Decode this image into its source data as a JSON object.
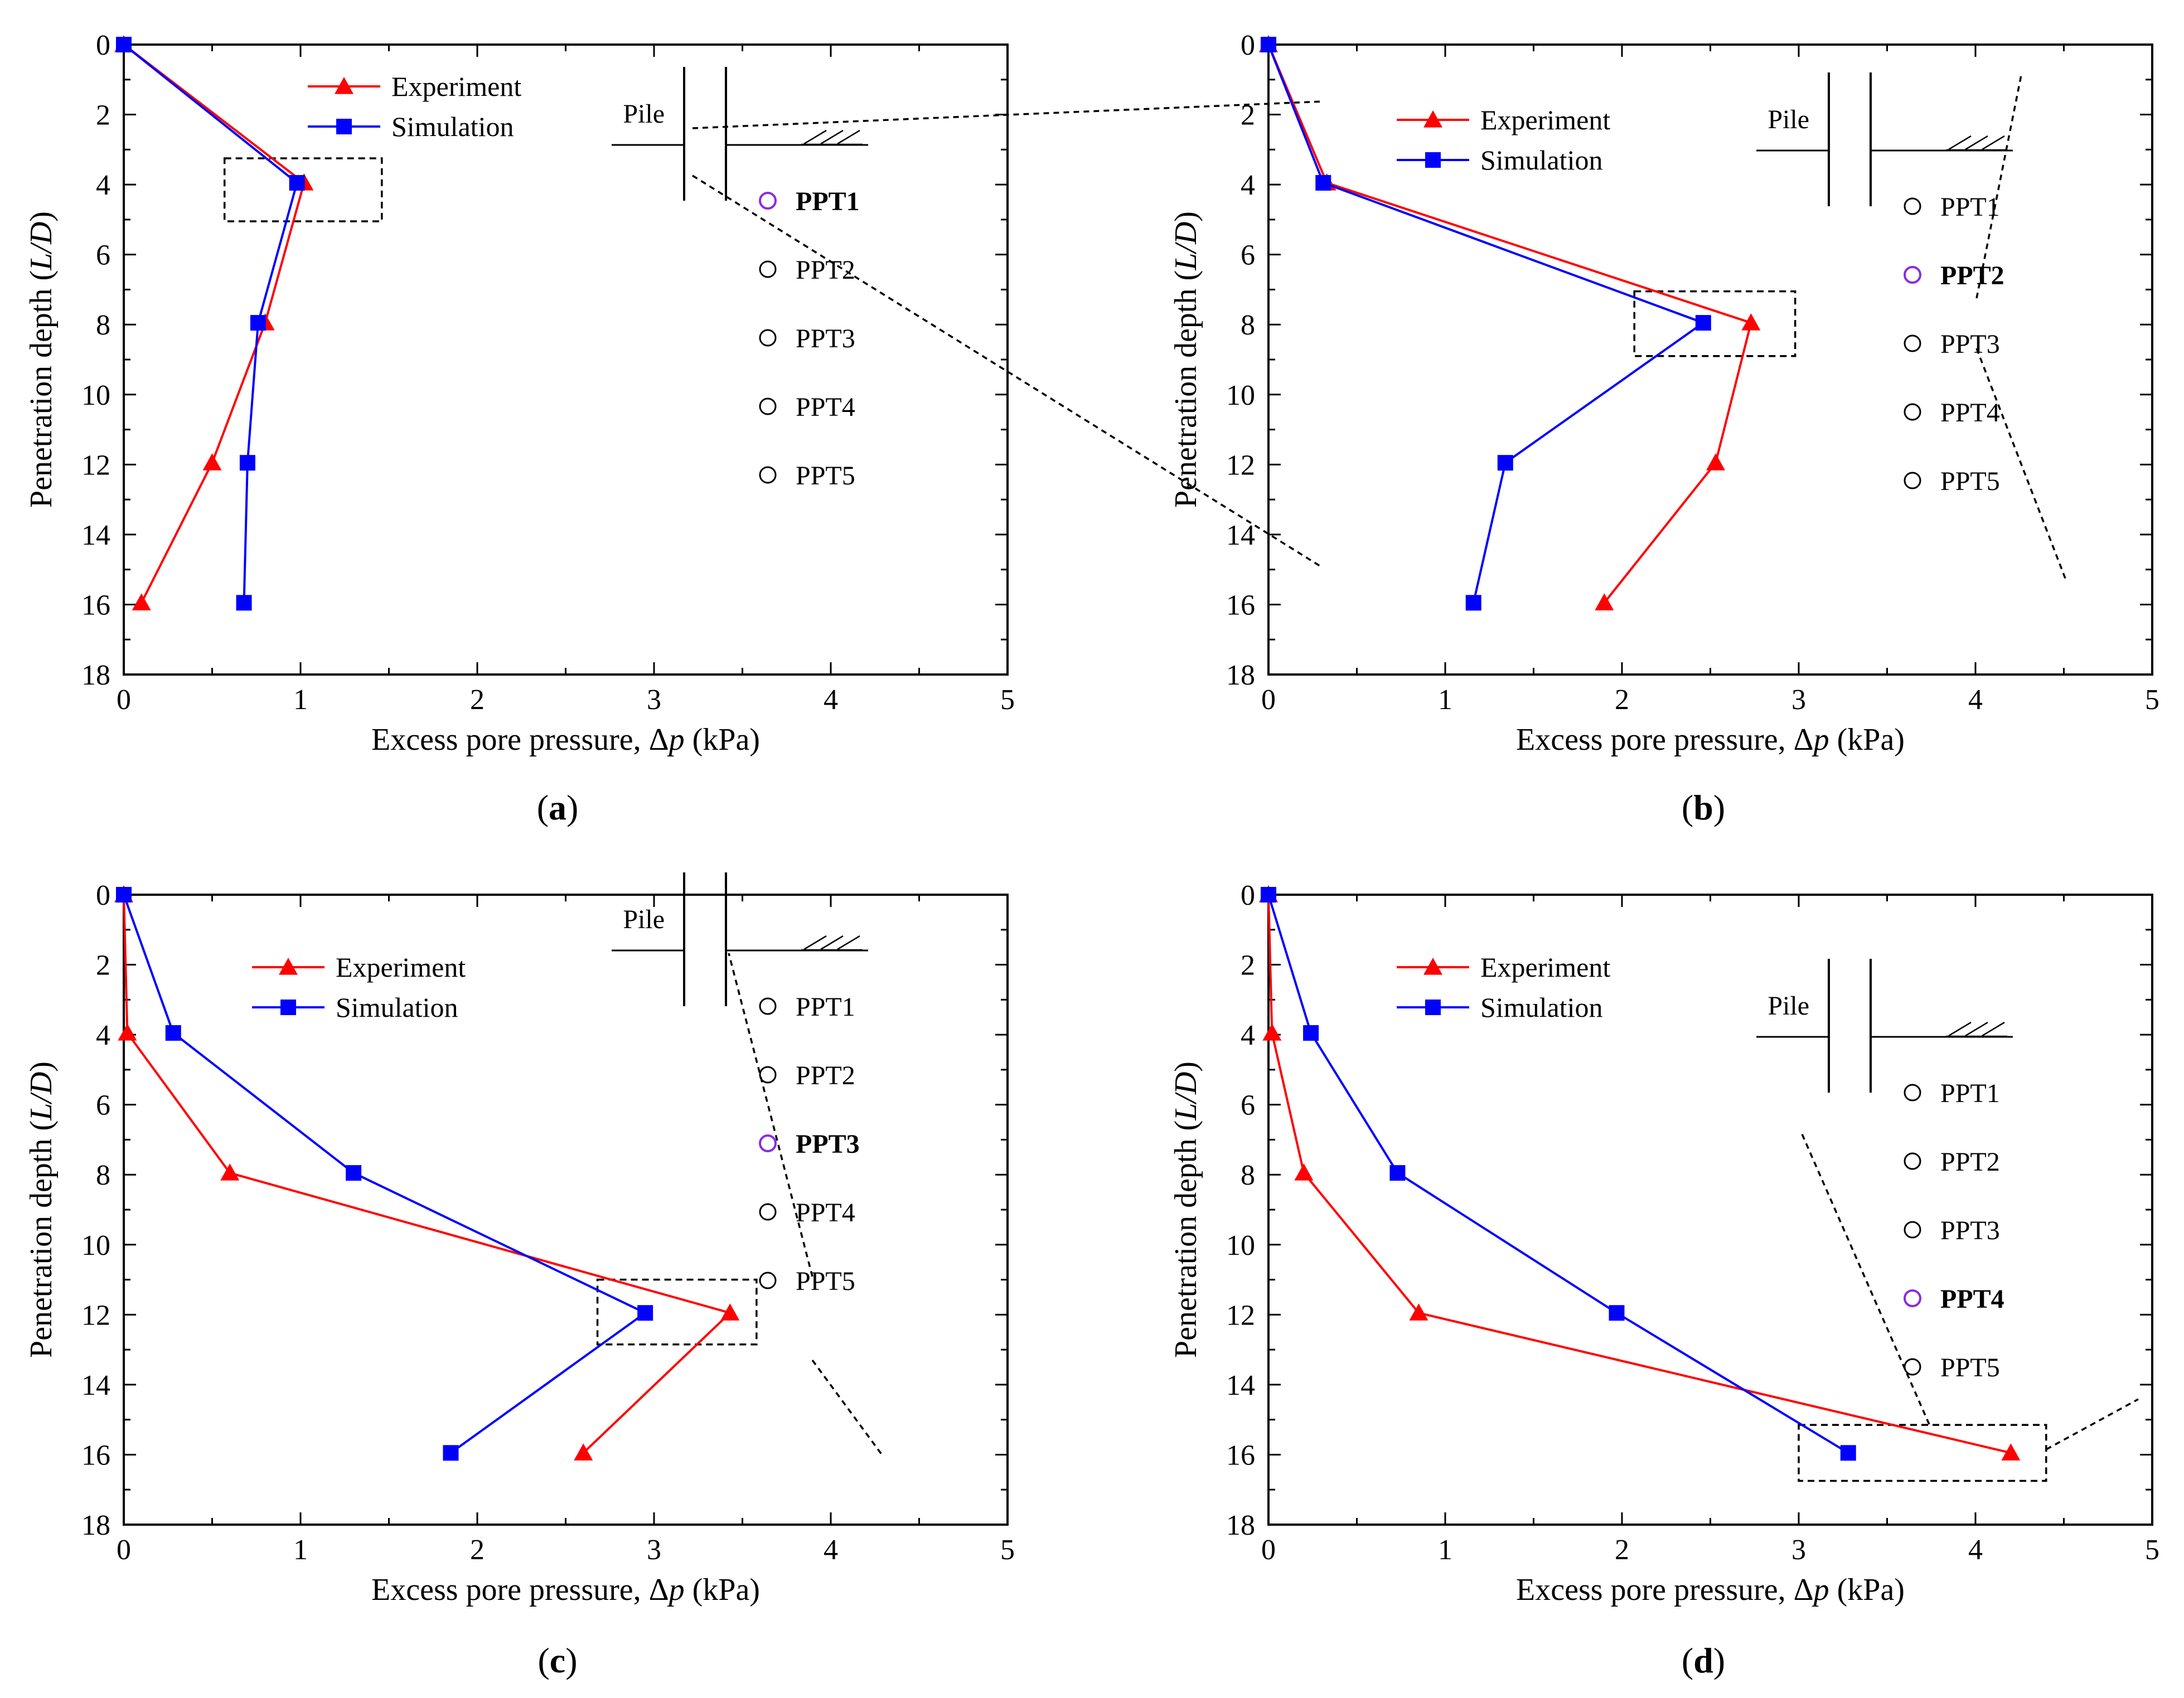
{
  "figure": {
    "colors": {
      "experiment": "#ff0000",
      "simulation": "#0000ff",
      "highlight": "#8a2be2",
      "axis": "#000000"
    },
    "icons": {
      "experiment_marker": "triangle-icon",
      "simulation_marker": "square-icon",
      "sensor_marker": "circle-icon",
      "ground_marker": "soil-hatch-icon"
    }
  },
  "chart_data": [
    {
      "panel": "a",
      "caption": {
        "open": "(",
        "letter": "a",
        "close": ")"
      },
      "type": "line",
      "xlabel": {
        "prefix": "Excess pore pressure, Δ",
        "var": "p",
        "suffix": " (kPa)"
      },
      "ylabel": {
        "prefix": "Penetration depth (",
        "var": "L/D",
        "suffix": ")"
      },
      "xlim": [
        0,
        5
      ],
      "ylim": [
        0,
        18
      ],
      "y_inverted": true,
      "xticks": [
        0,
        1,
        2,
        3,
        4,
        5
      ],
      "yticks": [
        0,
        2,
        4,
        6,
        8,
        10,
        12,
        14,
        16,
        18
      ],
      "legend": {
        "position": "top-left",
        "entries": [
          "Experiment",
          "Simulation"
        ]
      },
      "series": [
        {
          "name": "Experiment",
          "marker": "triangle",
          "points": [
            [
              0,
              0
            ],
            [
              1.02,
              3.95
            ],
            [
              0.8,
              7.95
            ],
            [
              0.5,
              11.95
            ],
            [
              0.1,
              15.95
            ]
          ]
        },
        {
          "name": "Simulation",
          "marker": "square",
          "points": [
            [
              0,
              0
            ],
            [
              0.98,
              3.95
            ],
            [
              0.76,
              7.95
            ],
            [
              0.7,
              11.95
            ],
            [
              0.68,
              15.95
            ]
          ]
        }
      ],
      "inset": {
        "pile_label": "Pile",
        "sensors": [
          "PPT1",
          "PPT2",
          "PPT3",
          "PPT4",
          "PPT5"
        ],
        "highlighted": "PPT1"
      },
      "zoom_box": {
        "x_range": [
          0.57,
          1.46
        ],
        "depth_range": [
          3.25,
          5.05
        ]
      }
    },
    {
      "panel": "b",
      "caption": {
        "open": "(",
        "letter": "b",
        "close": ")"
      },
      "type": "line",
      "xlabel": {
        "prefix": "Excess pore pressure, Δ",
        "var": "p",
        "suffix": " (kPa)"
      },
      "ylabel": {
        "prefix": "Penetration depth (",
        "var": "L/D",
        "suffix": ")"
      },
      "xlim": [
        0,
        5
      ],
      "ylim": [
        0,
        18
      ],
      "y_inverted": true,
      "xticks": [
        0,
        1,
        2,
        3,
        4,
        5
      ],
      "yticks": [
        0,
        2,
        4,
        6,
        8,
        10,
        12,
        14,
        16,
        18
      ],
      "legend": {
        "position": "top-left",
        "entries": [
          "Experiment",
          "Simulation"
        ]
      },
      "series": [
        {
          "name": "Experiment",
          "marker": "triangle",
          "points": [
            [
              0,
              0
            ],
            [
              0.33,
              3.95
            ],
            [
              2.73,
              7.95
            ],
            [
              2.53,
              11.95
            ],
            [
              1.9,
              15.95
            ]
          ]
        },
        {
          "name": "Simulation",
          "marker": "square",
          "points": [
            [
              0,
              0
            ],
            [
              0.31,
              3.95
            ],
            [
              2.46,
              7.95
            ],
            [
              1.34,
              11.95
            ],
            [
              1.16,
              15.95
            ]
          ]
        }
      ],
      "inset": {
        "pile_label": "Pile",
        "sensors": [
          "PPT1",
          "PPT2",
          "PPT3",
          "PPT4",
          "PPT5"
        ],
        "highlighted": "PPT2"
      },
      "zoom_box": {
        "x_range": [
          2.07,
          2.98
        ],
        "depth_range": [
          7.05,
          8.9
        ]
      }
    },
    {
      "panel": "c",
      "caption": {
        "open": "(",
        "letter": "c",
        "close": ")"
      },
      "type": "line",
      "xlabel": {
        "prefix": "Excess pore pressure, Δ",
        "var": "p",
        "suffix": " (kPa)"
      },
      "ylabel": {
        "prefix": "Penetration depth (",
        "var": "L/D",
        "suffix": ")"
      },
      "xlim": [
        0,
        5
      ],
      "ylim": [
        0,
        18
      ],
      "y_inverted": true,
      "xticks": [
        0,
        1,
        2,
        3,
        4,
        5
      ],
      "yticks": [
        0,
        2,
        4,
        6,
        8,
        10,
        12,
        14,
        16,
        18
      ],
      "legend": {
        "position": "top-left",
        "entries": [
          "Experiment",
          "Simulation"
        ]
      },
      "series": [
        {
          "name": "Experiment",
          "marker": "triangle",
          "points": [
            [
              0,
              0
            ],
            [
              0.02,
              3.95
            ],
            [
              0.6,
              7.95
            ],
            [
              3.43,
              11.95
            ],
            [
              2.6,
              15.95
            ]
          ]
        },
        {
          "name": "Simulation",
          "marker": "square",
          "points": [
            [
              0,
              0
            ],
            [
              0.28,
              3.95
            ],
            [
              1.3,
              7.95
            ],
            [
              2.95,
              11.95
            ],
            [
              1.85,
              15.95
            ]
          ]
        }
      ],
      "inset": {
        "pile_label": "Pile",
        "sensors": [
          "PPT1",
          "PPT2",
          "PPT3",
          "PPT4",
          "PPT5"
        ],
        "highlighted": "PPT3"
      },
      "zoom_box": {
        "x_range": [
          2.68,
          3.58
        ],
        "depth_range": [
          11.0,
          12.85
        ]
      }
    },
    {
      "panel": "d",
      "caption": {
        "open": "(",
        "letter": "d",
        "close": ")"
      },
      "type": "line",
      "xlabel": {
        "prefix": "Excess pore pressure, Δ",
        "var": "p",
        "suffix": " (kPa)"
      },
      "ylabel": {
        "prefix": "Penetration depth (",
        "var": "L/D",
        "suffix": ")"
      },
      "xlim": [
        0,
        5
      ],
      "ylim": [
        0,
        18
      ],
      "y_inverted": true,
      "xticks": [
        0,
        1,
        2,
        3,
        4,
        5
      ],
      "yticks": [
        0,
        2,
        4,
        6,
        8,
        10,
        12,
        14,
        16,
        18
      ],
      "legend": {
        "position": "top-left",
        "entries": [
          "Experiment",
          "Simulation"
        ]
      },
      "series": [
        {
          "name": "Experiment",
          "marker": "triangle",
          "points": [
            [
              0,
              0
            ],
            [
              0.02,
              3.95
            ],
            [
              0.2,
              7.95
            ],
            [
              0.85,
              11.95
            ],
            [
              4.2,
              15.95
            ]
          ]
        },
        {
          "name": "Simulation",
          "marker": "square",
          "points": [
            [
              0,
              0
            ],
            [
              0.24,
              3.95
            ],
            [
              0.73,
              7.95
            ],
            [
              1.97,
              11.95
            ],
            [
              3.28,
              15.95
            ]
          ]
        }
      ],
      "inset": {
        "pile_label": "Pile",
        "sensors": [
          "PPT1",
          "PPT2",
          "PPT3",
          "PPT4",
          "PPT5"
        ],
        "highlighted": "PPT4"
      },
      "zoom_box": {
        "x_range": [
          3.0,
          4.4
        ],
        "depth_range": [
          15.15,
          16.75
        ]
      }
    }
  ]
}
